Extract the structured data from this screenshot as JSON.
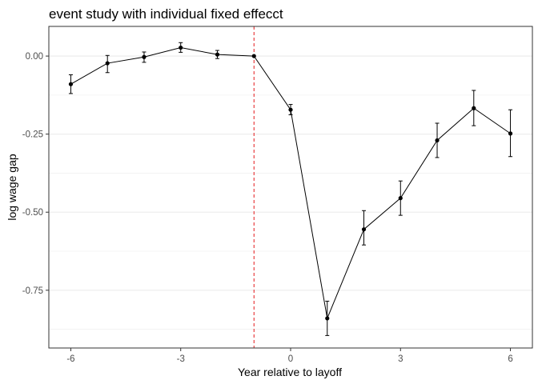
{
  "chart_data": {
    "type": "line",
    "title": "event study with individual fixed effecct",
    "xlabel": "Year relative to layoff",
    "ylabel": "log wage gap",
    "x": [
      -6,
      -5,
      -4,
      -3,
      -2,
      -1,
      0,
      1,
      2,
      3,
      4,
      5,
      6
    ],
    "series": [
      {
        "values": [
          -0.09,
          -0.023,
          -0.003,
          0.027,
          0.005,
          0.0,
          -0.172,
          -0.84,
          -0.555,
          -0.455,
          -0.27,
          -0.167,
          -0.248
        ],
        "ci_lower": [
          -0.12,
          -0.053,
          -0.02,
          0.012,
          -0.008,
          0.0,
          -0.188,
          -0.895,
          -0.605,
          -0.51,
          -0.325,
          -0.223,
          -0.322
        ],
        "ci_upper": [
          -0.06,
          0.002,
          0.013,
          0.043,
          0.018,
          0.0,
          -0.155,
          -0.785,
          -0.495,
          -0.4,
          -0.215,
          -0.11,
          -0.172
        ]
      }
    ],
    "xlim": [
      -6.6,
      6.6
    ],
    "ylim": [
      -0.935,
      0.095
    ],
    "xticks": [
      -6,
      -3,
      0,
      3,
      6
    ],
    "xtick_labels": [
      "-6",
      "-3",
      "0",
      "3",
      "6"
    ],
    "yticks": [
      0.0,
      -0.25,
      -0.5,
      -0.75
    ],
    "ytick_labels": [
      "0.00",
      "-0.25",
      "-0.50",
      "-0.75"
    ],
    "vline": {
      "x": -1,
      "style": "dashed",
      "color": "#e41a1c"
    },
    "grid": true,
    "colors": {
      "line": "#000000",
      "grid": "#ebebeb",
      "border": "#333333",
      "vline": "#e41a1c"
    }
  }
}
